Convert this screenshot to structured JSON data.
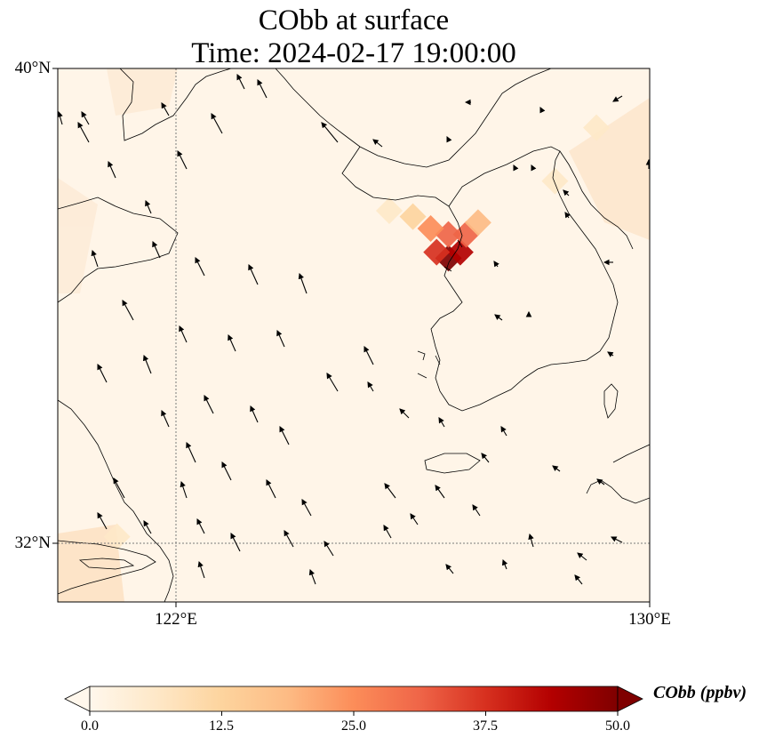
{
  "title": {
    "line1": "CObb at surface",
    "line2": "Time: 2024-02-17 19:00:00"
  },
  "axes": {
    "lat_ticks": [
      "40°N",
      "32°N"
    ],
    "lon_ticks": [
      "122°E",
      "130°E"
    ],
    "lon_range": [
      120,
      130
    ],
    "lat_range": [
      31,
      40
    ]
  },
  "colorbar": {
    "label": "CObb (ppbv)",
    "ticks": [
      "0.0",
      "12.5",
      "25.0",
      "37.5",
      "50.0"
    ],
    "range": [
      0,
      50
    ],
    "colormap": [
      "#fff7ec",
      "#fee8c8",
      "#fdd49e",
      "#fdbb84",
      "#fc8d59",
      "#ef6548",
      "#d7301f",
      "#b30000",
      "#7f0000"
    ]
  },
  "chart_data": {
    "type": "heatmap",
    "variable": "CObb",
    "units": "ppbv",
    "plume": [
      {
        "lon": 126.6,
        "lat": 36.8,
        "value": 52
      },
      {
        "lon": 126.8,
        "lat": 36.9,
        "value": 46
      },
      {
        "lon": 126.4,
        "lat": 36.9,
        "value": 40
      },
      {
        "lon": 126.6,
        "lat": 37.2,
        "value": 34
      },
      {
        "lon": 126.9,
        "lat": 37.2,
        "value": 30
      },
      {
        "lon": 126.3,
        "lat": 37.3,
        "value": 24
      },
      {
        "lon": 127.1,
        "lat": 37.4,
        "value": 20
      },
      {
        "lon": 126.0,
        "lat": 37.5,
        "value": 14
      },
      {
        "lon": 125.6,
        "lat": 37.6,
        "value": 7
      },
      {
        "lon": 128.4,
        "lat": 38.1,
        "value": 6
      },
      {
        "lon": 129.1,
        "lat": 39.0,
        "value": 4
      },
      {
        "lon": 121.0,
        "lat": 32.1,
        "value": 4
      }
    ]
  }
}
